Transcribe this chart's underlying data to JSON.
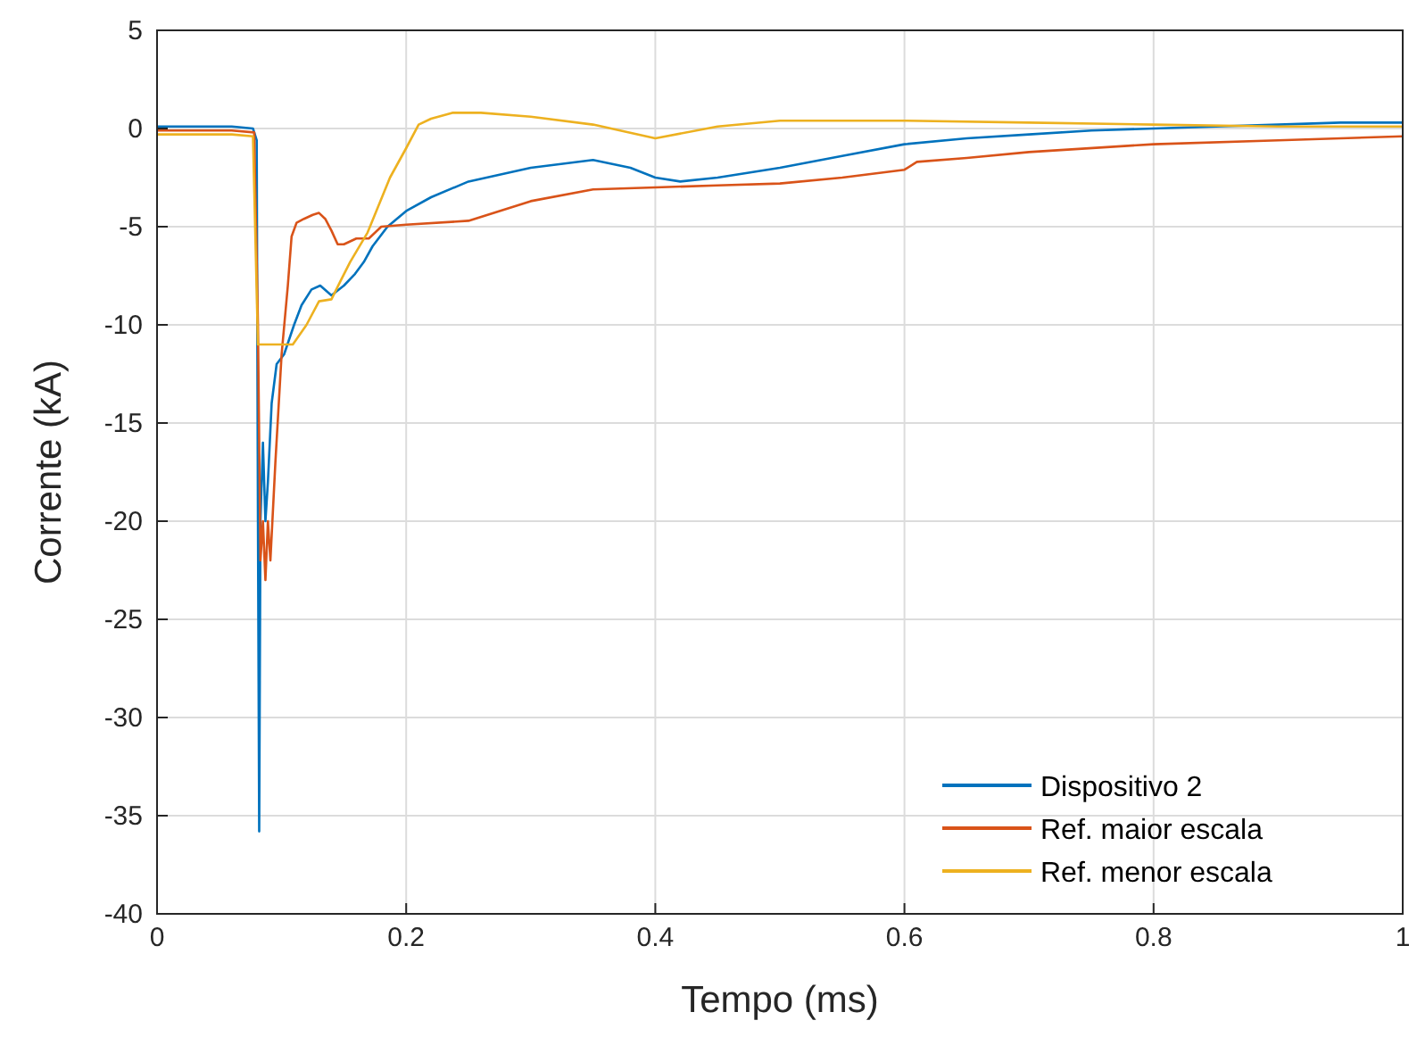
{
  "chart_data": {
    "type": "line",
    "xlabel": "Tempo (ms)",
    "ylabel": "Corrente (kA)",
    "xlim": [
      0,
      1
    ],
    "ylim": [
      -40,
      5
    ],
    "xticks": [
      0,
      0.2,
      0.4,
      0.6,
      0.8,
      1
    ],
    "yticks": [
      -40,
      -35,
      -30,
      -25,
      -20,
      -15,
      -10,
      -5,
      0,
      5
    ],
    "grid": true,
    "legend": "bottom right",
    "series": [
      {
        "name": "Dispositivo 2",
        "color": "#0072bd",
        "x": [
          0,
          0.02,
          0.04,
          0.06,
          0.077,
          0.08,
          0.081,
          0.082,
          0.083,
          0.085,
          0.087,
          0.089,
          0.092,
          0.096,
          0.102,
          0.11,
          0.116,
          0.124,
          0.131,
          0.14,
          0.15,
          0.159,
          0.166,
          0.173,
          0.185,
          0.2,
          0.22,
          0.25,
          0.3,
          0.35,
          0.38,
          0.4,
          0.42,
          0.45,
          0.5,
          0.55,
          0.6,
          0.65,
          0.7,
          0.75,
          0.8,
          0.85,
          0.9,
          0.95,
          1
        ],
        "values": [
          0.1,
          0.1,
          0.1,
          0.1,
          0,
          -0.6,
          -20,
          -35.8,
          -20,
          -16,
          -20,
          -18,
          -14,
          -12,
          -11.5,
          -10,
          -9,
          -8.2,
          -8,
          -8.5,
          -8,
          -7.4,
          -6.8,
          -6,
          -5,
          -4.2,
          -3.5,
          -2.7,
          -2,
          -1.6,
          -2,
          -2.5,
          -2.7,
          -2.5,
          -2,
          -1.4,
          -0.8,
          -0.5,
          -0.3,
          -0.1,
          0,
          0.1,
          0.2,
          0.3,
          0.3
        ]
      },
      {
        "name": "Ref. maior escala",
        "color": "#d95319",
        "x": [
          0,
          0.02,
          0.04,
          0.06,
          0.078,
          0.081,
          0.083,
          0.085,
          0.087,
          0.089,
          0.091,
          0.095,
          0.1,
          0.105,
          0.108,
          0.112,
          0.118,
          0.125,
          0.13,
          0.135,
          0.14,
          0.145,
          0.15,
          0.16,
          0.17,
          0.18,
          0.2,
          0.25,
          0.3,
          0.35,
          0.4,
          0.45,
          0.5,
          0.55,
          0.6,
          0.61,
          0.65,
          0.7,
          0.8,
          0.9,
          1
        ],
        "values": [
          -0.1,
          -0.1,
          -0.1,
          -0.1,
          -0.2,
          -10,
          -22,
          -20,
          -23,
          -20,
          -22,
          -17,
          -11.5,
          -8,
          -5.5,
          -4.8,
          -4.6,
          -4.4,
          -4.3,
          -4.6,
          -5.2,
          -5.9,
          -5.9,
          -5.6,
          -5.6,
          -5,
          -4.9,
          -4.7,
          -3.7,
          -3.1,
          -3,
          -2.9,
          -2.8,
          -2.5,
          -2.1,
          -1.7,
          -1.5,
          -1.2,
          -0.8,
          -0.6,
          -0.4
        ]
      },
      {
        "name": "Ref. menor escala",
        "color": "#edb120",
        "x": [
          0,
          0.02,
          0.04,
          0.06,
          0.077,
          0.081,
          0.09,
          0.1,
          0.109,
          0.12,
          0.13,
          0.14,
          0.147,
          0.155,
          0.169,
          0.187,
          0.2,
          0.21,
          0.22,
          0.237,
          0.26,
          0.3,
          0.35,
          0.4,
          0.45,
          0.5,
          0.6,
          0.7,
          0.8,
          0.9,
          1
        ],
        "values": [
          -0.3,
          -0.3,
          -0.3,
          -0.3,
          -0.4,
          -11,
          -11,
          -11,
          -11,
          -10,
          -8.8,
          -8.7,
          -7.8,
          -6.8,
          -5.3,
          -2.5,
          -1,
          0.2,
          0.5,
          0.8,
          0.8,
          0.6,
          0.2,
          -0.5,
          0.1,
          0.4,
          0.4,
          0.3,
          0.2,
          0.1,
          0.1
        ]
      }
    ]
  }
}
